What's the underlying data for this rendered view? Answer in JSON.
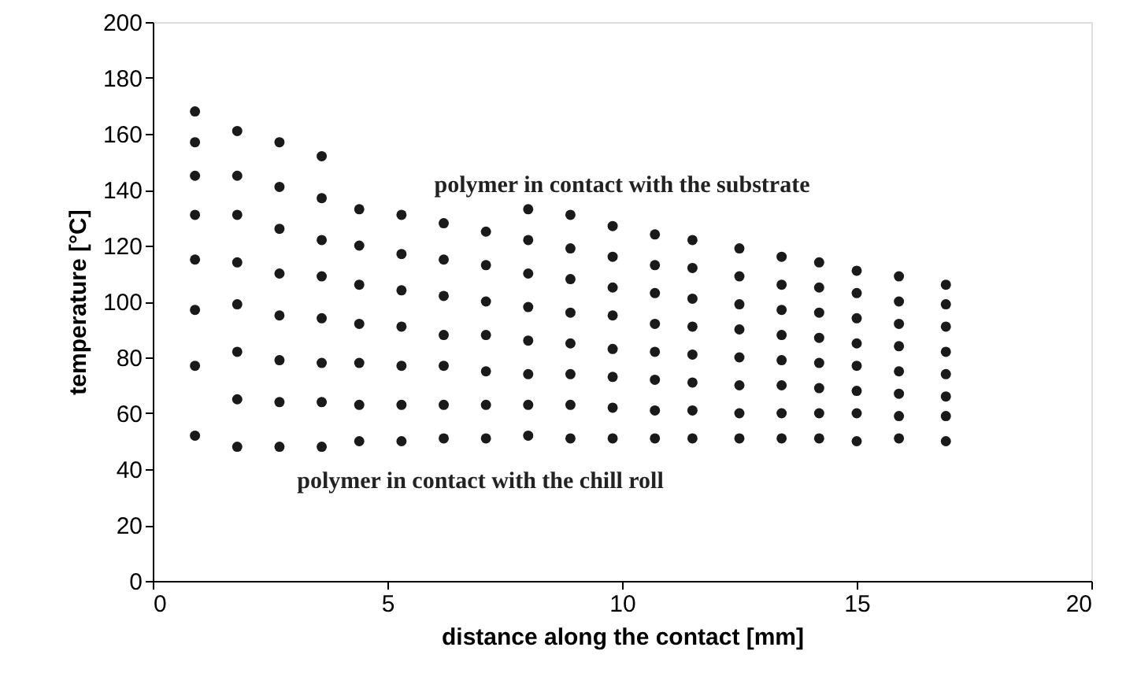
{
  "chart_data": {
    "type": "scatter",
    "xlabel": "distance along the contact [mm]",
    "ylabel": "temperature [°C]",
    "xlim": [
      0,
      20
    ],
    "xticks": [
      0,
      5,
      10,
      15,
      20
    ],
    "ylim": [
      0,
      200
    ],
    "yticks": [
      0,
      20,
      40,
      60,
      80,
      100,
      120,
      140,
      160,
      180,
      200
    ],
    "grid": false,
    "marker": "circle",
    "series": [
      {
        "color": "#1a1a1a",
        "x": [
          0.9,
          0.9,
          0.9,
          0.9,
          0.9,
          0.9,
          0.9,
          0.9,
          1.8,
          1.8,
          1.8,
          1.8,
          1.8,
          1.8,
          1.8,
          1.8,
          2.7,
          2.7,
          2.7,
          2.7,
          2.7,
          2.7,
          2.7,
          2.7,
          3.6,
          3.6,
          3.6,
          3.6,
          3.6,
          3.6,
          3.6,
          3.6,
          4.4,
          4.4,
          4.4,
          4.4,
          4.4,
          4.4,
          4.4,
          5.3,
          5.3,
          5.3,
          5.3,
          5.3,
          5.3,
          5.3,
          6.2,
          6.2,
          6.2,
          6.2,
          6.2,
          6.2,
          6.2,
          7.1,
          7.1,
          7.1,
          7.1,
          7.1,
          7.1,
          7.1,
          8.0,
          8.0,
          8.0,
          8.0,
          8.0,
          8.0,
          8.0,
          8.0,
          8.9,
          8.9,
          8.9,
          8.9,
          8.9,
          8.9,
          8.9,
          8.9,
          9.8,
          9.8,
          9.8,
          9.8,
          9.8,
          9.8,
          9.8,
          9.8,
          10.7,
          10.7,
          10.7,
          10.7,
          10.7,
          10.7,
          10.7,
          10.7,
          11.5,
          11.5,
          11.5,
          11.5,
          11.5,
          11.5,
          11.5,
          11.5,
          12.5,
          12.5,
          12.5,
          12.5,
          12.5,
          12.5,
          12.5,
          12.5,
          13.4,
          13.4,
          13.4,
          13.4,
          13.4,
          13.4,
          13.4,
          13.4,
          14.2,
          14.2,
          14.2,
          14.2,
          14.2,
          14.2,
          14.2,
          14.2,
          15.0,
          15.0,
          15.0,
          15.0,
          15.0,
          15.0,
          15.0,
          15.0,
          15.9,
          15.9,
          15.9,
          15.9,
          15.9,
          15.9,
          15.9,
          15.9,
          16.9,
          16.9,
          16.9,
          16.9,
          16.9,
          16.9,
          16.9,
          16.9
        ],
        "values": [
          168,
          157,
          145,
          131,
          115,
          97,
          77,
          52,
          161,
          145,
          131,
          114,
          99,
          82,
          65,
          48,
          157,
          141,
          126,
          110,
          95,
          79,
          64,
          48,
          152,
          137,
          122,
          109,
          94,
          78,
          64,
          48,
          133,
          120,
          106,
          92,
          78,
          63,
          50,
          131,
          117,
          104,
          91,
          77,
          63,
          50,
          128,
          115,
          102,
          88,
          77,
          63,
          51,
          125,
          113,
          100,
          88,
          75,
          63,
          51,
          133,
          122,
          110,
          98,
          86,
          74,
          63,
          52,
          131,
          119,
          108,
          96,
          85,
          74,
          63,
          51,
          127,
          116,
          105,
          95,
          83,
          73,
          62,
          51,
          124,
          113,
          103,
          92,
          82,
          72,
          61,
          51,
          122,
          112,
          101,
          91,
          81,
          71,
          61,
          51,
          119,
          109,
          99,
          90,
          80,
          70,
          60,
          51,
          116,
          106,
          97,
          88,
          79,
          70,
          60,
          51,
          114,
          105,
          96,
          87,
          78,
          69,
          60,
          51,
          111,
          103,
          94,
          85,
          77,
          68,
          60,
          50,
          109,
          100,
          92,
          84,
          75,
          67,
          59,
          51,
          106,
          99,
          91,
          82,
          74,
          66,
          59,
          50
        ]
      }
    ],
    "annotations": [
      "polymer in contact with the substrate",
      "polymer in contact with the chill roll"
    ]
  }
}
